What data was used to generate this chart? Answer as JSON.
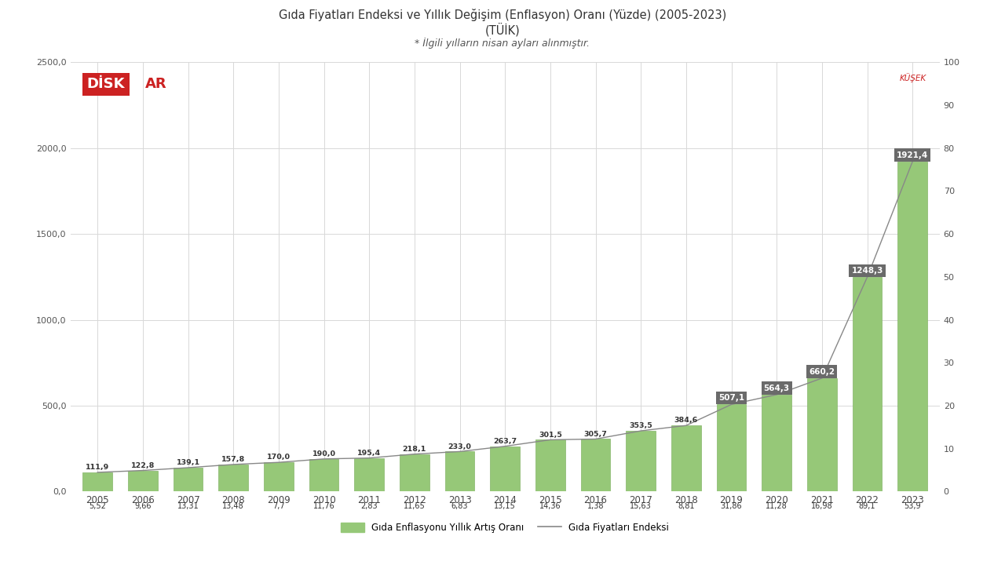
{
  "years": [
    2005,
    2006,
    2007,
    2008,
    2009,
    2010,
    2011,
    2012,
    2013,
    2014,
    2015,
    2016,
    2017,
    2018,
    2019,
    2020,
    2021,
    2022,
    2023
  ],
  "index_values": [
    111.9,
    122.8,
    139.1,
    157.8,
    170.0,
    190.0,
    195.4,
    218.1,
    233.0,
    263.7,
    301.5,
    305.7,
    353.5,
    384.6,
    507.1,
    564.3,
    660.2,
    1248.3,
    1921.4
  ],
  "inflation_rates": [
    5.52,
    9.66,
    13.31,
    13.48,
    7.7,
    11.76,
    2.83,
    11.65,
    6.83,
    13.15,
    14.36,
    1.38,
    15.63,
    8.81,
    31.86,
    11.28,
    16.98,
    89.1,
    53.9
  ],
  "bar_color": "#96c878",
  "bar_edge_color": "#85b568",
  "line_color": "#888888",
  "label_bg_color": "#6a6a6a",
  "label_text_color": "#ffffff",
  "title_line1": "Gıda Fiyatları Endeksi ve Yıllık Değişim (Enflasyon) Oranı (Yüzde) (2005-2023)",
  "title_line2": "(TÜİK)",
  "subtitle": "* İlgili yılların nisan ayları alınmıştır.",
  "left_ylim": [
    0,
    2500
  ],
  "right_ylim": [
    0,
    100
  ],
  "left_yticks": [
    0,
    500.0,
    1000.0,
    1500.0,
    2000.0,
    2500.0
  ],
  "right_yticks": [
    0,
    10,
    20,
    30,
    40,
    50,
    60,
    70,
    80,
    90,
    100
  ],
  "legend_bar_label": "Gıda Enflasyonu Yıllık Artış Oranı",
  "legend_line_label": "Gıda Fiyatları Endeksi",
  "disk_red": "#cc2222",
  "background_color": "#ffffff",
  "grid_color": "#d8d8d8",
  "bar_width": 0.65,
  "boxlabel_years": [
    2019,
    2020,
    2021,
    2022,
    2023
  ],
  "note_right": "KÜŞEK"
}
